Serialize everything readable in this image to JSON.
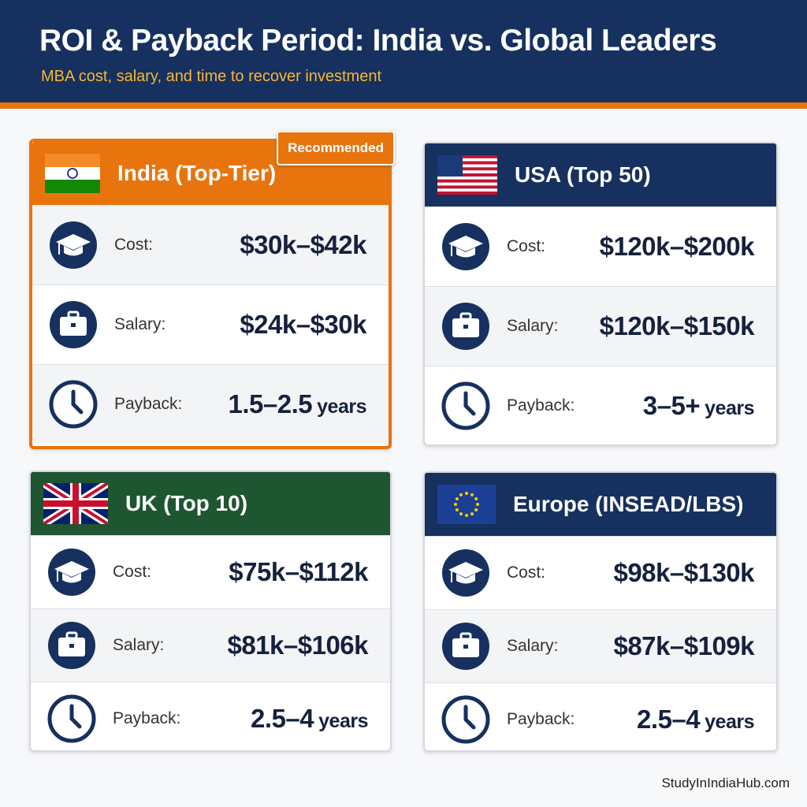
{
  "header": {
    "title": "ROI & Payback Period: India vs. Global Leaders",
    "subtitle": "MBA cost, salary, and time to recover investment"
  },
  "cards": [
    {
      "title": "India (Top-Tier)",
      "badge": "Recommended",
      "rows": [
        {
          "label": "Cost:",
          "value": "$30k–$42k"
        },
        {
          "label": "Salary:",
          "value": "$24k–$30k"
        },
        {
          "label": "Payback:",
          "value": "1.5–2.5",
          "unit": "years"
        }
      ]
    },
    {
      "title": "USA (Top 50)",
      "rows": [
        {
          "label": "Cost:",
          "value": "$120k–$200k"
        },
        {
          "label": "Salary:",
          "value": "$120k–$150k"
        },
        {
          "label": "Payback:",
          "value": "3–5+",
          "unit": "years"
        }
      ]
    },
    {
      "title": "UK (Top 10)",
      "rows": [
        {
          "label": "Cost:",
          "value": "$75k–$112k"
        },
        {
          "label": "Salary:",
          "value": "$81k–$106k"
        },
        {
          "label": "Payback:",
          "value": "2.5–4",
          "unit": "years"
        }
      ]
    },
    {
      "title": "Europe (INSEAD/LBS)",
      "rows": [
        {
          "label": "Cost:",
          "value": "$98k–$130k"
        },
        {
          "label": "Salary:",
          "value": "$87k–$109k"
        },
        {
          "label": "Payback:",
          "value": "2.5–4",
          "unit": "years"
        }
      ]
    }
  ],
  "footer": "StudyInIndiaHub.com"
}
